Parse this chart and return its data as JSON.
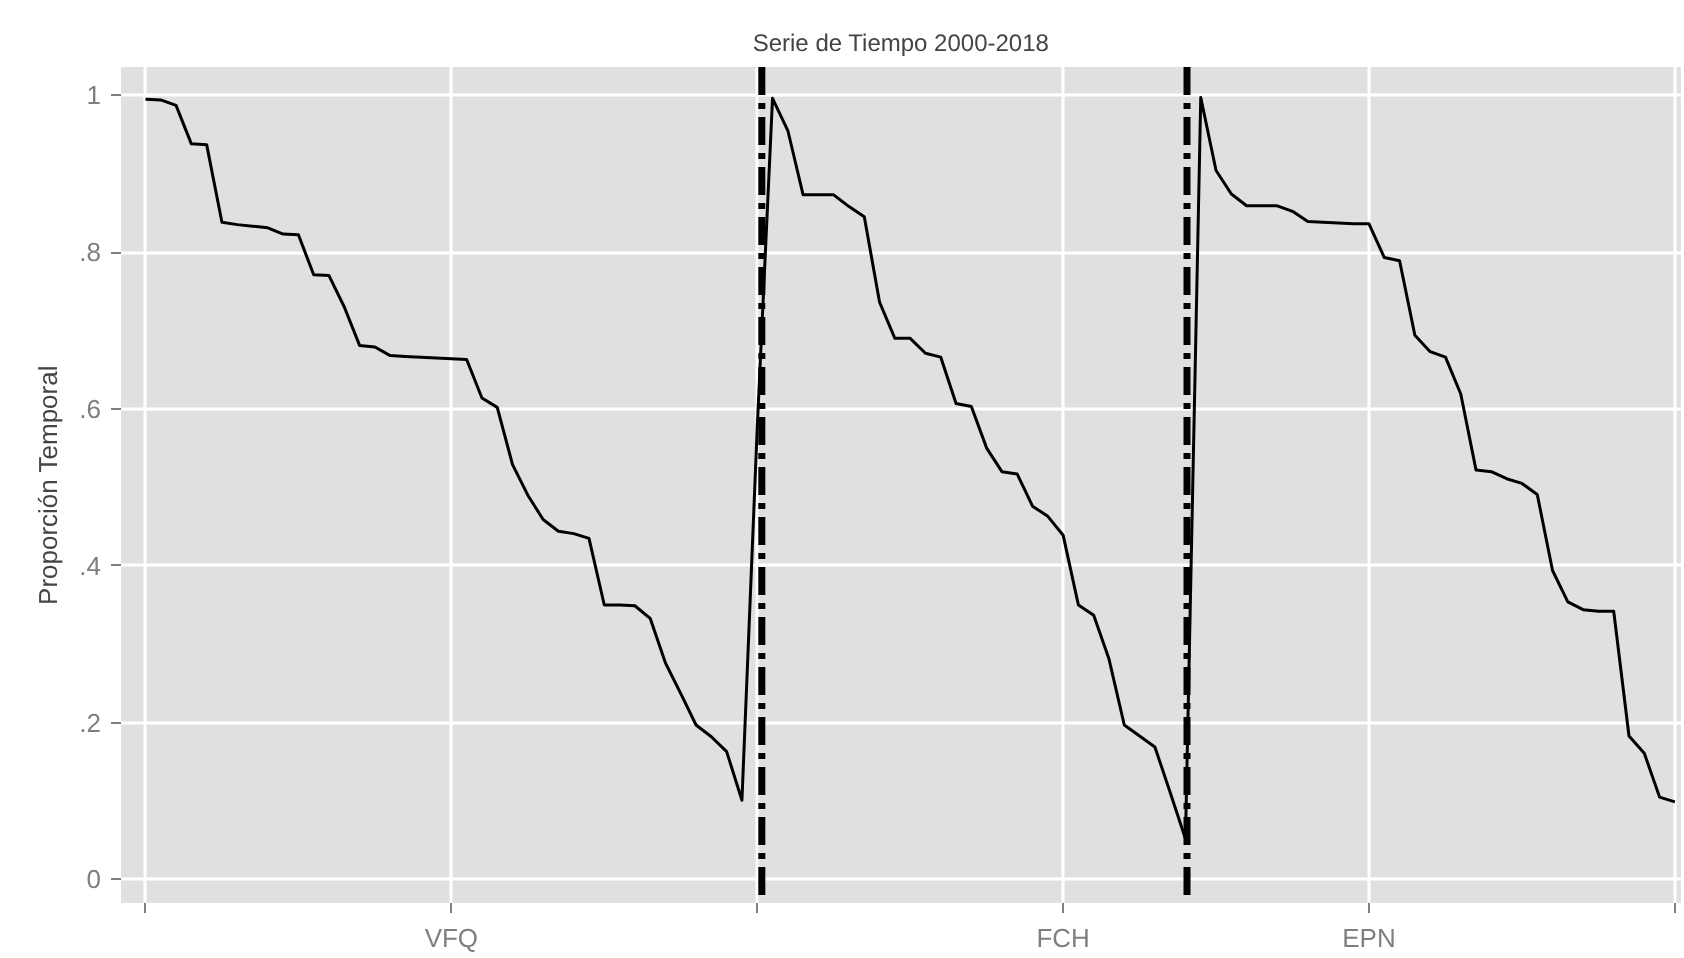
{
  "chart_data": {
    "type": "line",
    "title": "Serie de Tiempo 2000-2018",
    "ylabel": "Proporción Temporal",
    "categories": [
      null,
      null,
      null,
      null,
      null,
      null,
      null,
      null,
      null,
      null,
      null,
      null,
      null,
      null,
      null,
      null,
      null,
      null,
      null,
      null,
      "VFQ",
      null,
      null,
      null,
      null,
      null,
      null,
      null,
      null,
      null,
      null,
      null,
      null,
      null,
      null,
      null,
      null,
      null,
      null,
      null,
      null,
      null,
      null,
      null,
      null,
      null,
      null,
      null,
      null,
      null,
      null,
      null,
      null,
      null,
      null,
      null,
      null,
      null,
      null,
      null,
      "FCH",
      null,
      null,
      null,
      null,
      null,
      null,
      null,
      null,
      null,
      null,
      null,
      null,
      null,
      null,
      null,
      null,
      null,
      null,
      null,
      "EPN",
      null,
      null,
      null,
      null,
      null,
      null,
      null,
      null,
      null,
      null,
      null,
      null,
      null,
      null,
      null,
      null,
      null,
      null,
      null,
      null
    ],
    "series": [
      {
        "color": "#000000",
        "values": [
          0.995,
          0.994,
          0.987,
          0.938,
          0.937,
          0.838,
          0.835,
          0.833,
          0.831,
          0.823,
          0.822,
          0.771,
          0.77,
          0.73,
          0.681,
          0.679,
          0.668,
          0.667,
          0.666,
          0.665,
          0.664,
          0.663,
          0.614,
          0.602,
          0.529,
          0.49,
          0.459,
          0.444,
          0.441,
          0.435,
          0.35,
          0.35,
          0.349,
          0.333,
          0.276,
          0.237,
          0.197,
          0.182,
          0.163,
          0.101,
          0.576,
          0.996,
          0.955,
          0.873,
          0.873,
          0.873,
          0.858,
          0.845,
          0.736,
          0.69,
          0.69,
          0.671,
          0.666,
          0.607,
          0.603,
          0.55,
          0.52,
          0.517,
          0.476,
          0.463,
          0.439,
          0.35,
          0.337,
          0.281,
          0.197,
          0.183,
          0.169,
          0.111,
          0.052,
          0.997,
          0.904,
          0.874,
          0.859,
          0.859,
          0.859,
          0.852,
          0.839,
          0.838,
          0.837,
          0.836,
          0.836,
          0.793,
          0.789,
          0.694,
          0.673,
          0.666,
          0.619,
          0.522,
          0.52,
          0.511,
          0.505,
          0.491,
          0.394,
          0.354,
          0.344,
          0.342,
          0.342,
          0.183,
          0.161,
          0.105,
          0.099
        ]
      }
    ],
    "ylim": [
      -0.03,
      1.036
    ],
    "yticks": [
      0,
      {
        "value": 0.2,
        "label": ".2"
      },
      {
        "value": 0.4,
        "label": ".4"
      },
      {
        "value": 0.6,
        "label": ".6"
      },
      {
        "value": 0.8,
        "label": ".8"
      },
      1
    ],
    "grid": true
  }
}
